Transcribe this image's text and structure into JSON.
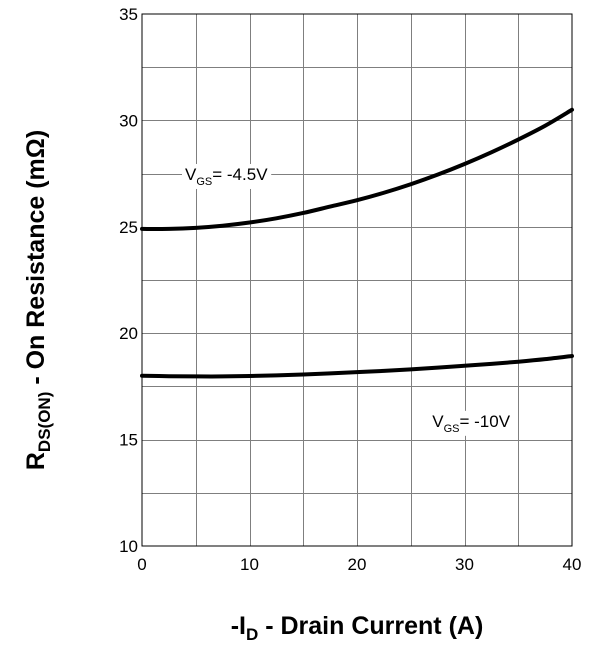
{
  "chart_data": {
    "type": "line",
    "title": "",
    "xlabel": {
      "prefix": "-I",
      "sub": "D",
      "suffix": " - Drain Current (A)"
    },
    "ylabel": {
      "prefix": "R",
      "sub": "DS(ON)",
      "suffix": " - On Resistance (mΩ)"
    },
    "xlim": [
      0,
      40
    ],
    "ylim": [
      10,
      35
    ],
    "xticks": [
      0,
      10,
      20,
      30,
      40
    ],
    "xtick_labels": [
      "0",
      "10",
      "20",
      "30",
      "40"
    ],
    "yticks": [
      10,
      15,
      20,
      25,
      30,
      35
    ],
    "ytick_labels": [
      "10",
      "15",
      "20",
      "25",
      "30",
      "35"
    ],
    "grid": {
      "x_step": 5,
      "y_step": 2.5,
      "on": true
    },
    "series": [
      {
        "x": [
          0,
          2.5,
          5,
          7.5,
          10,
          12.5,
          15,
          17.5,
          20,
          22.5,
          25,
          27.5,
          30,
          32.5,
          35,
          37.5,
          40
        ],
        "y": [
          24.9,
          24.9,
          24.95,
          25.05,
          25.2,
          25.4,
          25.65,
          25.95,
          26.25,
          26.6,
          27.0,
          27.45,
          27.95,
          28.5,
          29.1,
          29.75,
          30.5
        ]
      },
      {
        "x": [
          0,
          2.5,
          5,
          7.5,
          10,
          12.5,
          15,
          17.5,
          20,
          22.5,
          25,
          27.5,
          30,
          32.5,
          35,
          37.5,
          40
        ],
        "y": [
          18.0,
          17.98,
          17.97,
          17.97,
          17.99,
          18.02,
          18.06,
          18.11,
          18.17,
          18.23,
          18.3,
          18.38,
          18.47,
          18.56,
          18.66,
          18.78,
          18.93
        ]
      }
    ],
    "annotations": [
      {
        "prefix": "V",
        "sub": "GS",
        "suffix": "= -4.5V",
        "x": 4,
        "y": 27.2
      },
      {
        "prefix": "V",
        "sub": "GS",
        "suffix": "= -10V",
        "x": 27,
        "y": 15.6
      }
    ]
  }
}
